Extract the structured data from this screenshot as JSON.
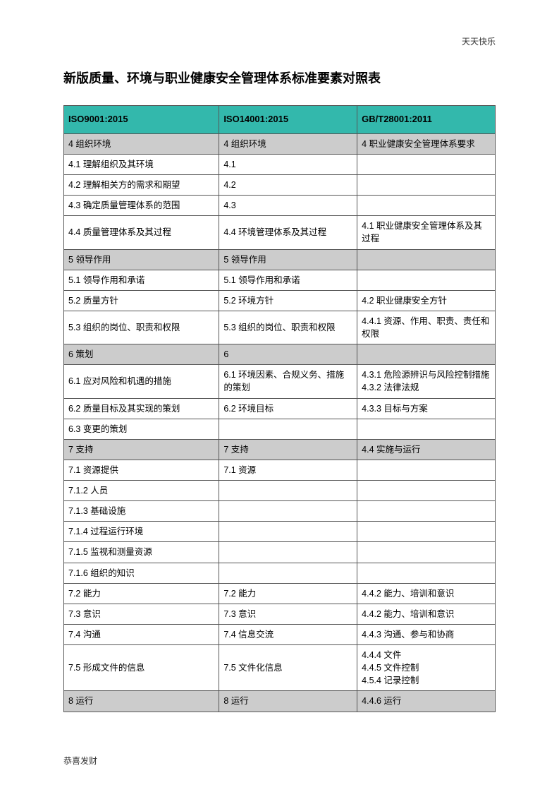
{
  "top_note": "天天快乐",
  "title": "新版质量、环境与职业健康安全管理体系标准要素对照表",
  "footer_note": "恭喜发财",
  "header_bg": "#33b8ac",
  "section_bg": "#cccccc",
  "columns": [
    "ISO9001:2015",
    "ISO14001:2015",
    "GB/T28001:2011"
  ],
  "rows": [
    {
      "section": true,
      "c": [
        "4 组织环境",
        "4 组织环境",
        "4 职业健康安全管理体系要求"
      ]
    },
    {
      "section": false,
      "c": [
        "4.1 理解组织及其环境",
        "4.1",
        ""
      ]
    },
    {
      "section": false,
      "c": [
        "4.2 理解相关方的需求和期望",
        "4.2",
        ""
      ]
    },
    {
      "section": false,
      "c": [
        "4.3 确定质量管理体系的范围",
        "4.3",
        ""
      ]
    },
    {
      "section": false,
      "c": [
        "4.4 质量管理体系及其过程",
        "4.4 环境管理体系及其过程",
        "4.1 职业健康安全管理体系及其过程"
      ]
    },
    {
      "section": true,
      "c": [
        "5 领导作用",
        "5 领导作用",
        ""
      ]
    },
    {
      "section": false,
      "c": [
        "5.1 领导作用和承诺",
        "5.1 领导作用和承诺",
        ""
      ]
    },
    {
      "section": false,
      "c": [
        "5.2 质量方针",
        "5.2 环境方针",
        "4.2 职业健康安全方针"
      ]
    },
    {
      "section": false,
      "c": [
        "5.3 组织的岗位、职责和权限",
        "5.3 组织的岗位、职责和权限",
        "4.4.1 资源、作用、职责、责任和权限"
      ]
    },
    {
      "section": true,
      "c": [
        "6 策划",
        "6",
        ""
      ]
    },
    {
      "section": false,
      "c": [
        "6.1 应对风险和机遇的措施",
        "6.1 环境因素、合规义务、措施的策划",
        "4.3.1 危险源辨识与风险控制措施 4.3.2 法律法规"
      ]
    },
    {
      "section": false,
      "c": [
        "6.2 质量目标及其实现的策划",
        "6.2 环境目标",
        "4.3.3 目标与方案"
      ]
    },
    {
      "section": false,
      "c": [
        "6.3 变更的策划",
        "",
        ""
      ]
    },
    {
      "section": true,
      "c": [
        "7 支持",
        "7 支持",
        "4.4 实施与运行"
      ]
    },
    {
      "section": false,
      "c": [
        "7.1 资源提供",
        "7.1 资源",
        ""
      ]
    },
    {
      "section": false,
      "c": [
        "7.1.2 人员",
        "",
        ""
      ]
    },
    {
      "section": false,
      "c": [
        "7.1.3 基础设施",
        "",
        ""
      ]
    },
    {
      "section": false,
      "c": [
        "7.1.4 过程运行环境",
        "",
        ""
      ]
    },
    {
      "section": false,
      "c": [
        "7.1.5 监视和测量资源",
        "",
        ""
      ]
    },
    {
      "section": false,
      "c": [
        "7.1.6 组织的知识",
        "",
        ""
      ]
    },
    {
      "section": false,
      "c": [
        "7.2 能力",
        "7.2 能力",
        "4.4.2 能力、培训和意识"
      ]
    },
    {
      "section": false,
      "c": [
        "7.3 意识",
        "7.3 意识",
        "4.4.2 能力、培训和意识"
      ]
    },
    {
      "section": false,
      "c": [
        "7.4 沟通",
        "7.4 信息交流",
        "4.4.3 沟通、参与和协商"
      ]
    },
    {
      "section": false,
      "c": [
        "7.5 形成文件的信息",
        "7.5 文件化信息",
        "4.4.4 文件\n4.4.5 文件控制\n4.5.4 记录控制"
      ]
    },
    {
      "section": true,
      "c": [
        "8 运行",
        "8 运行",
        "4.4.6 运行"
      ]
    }
  ]
}
